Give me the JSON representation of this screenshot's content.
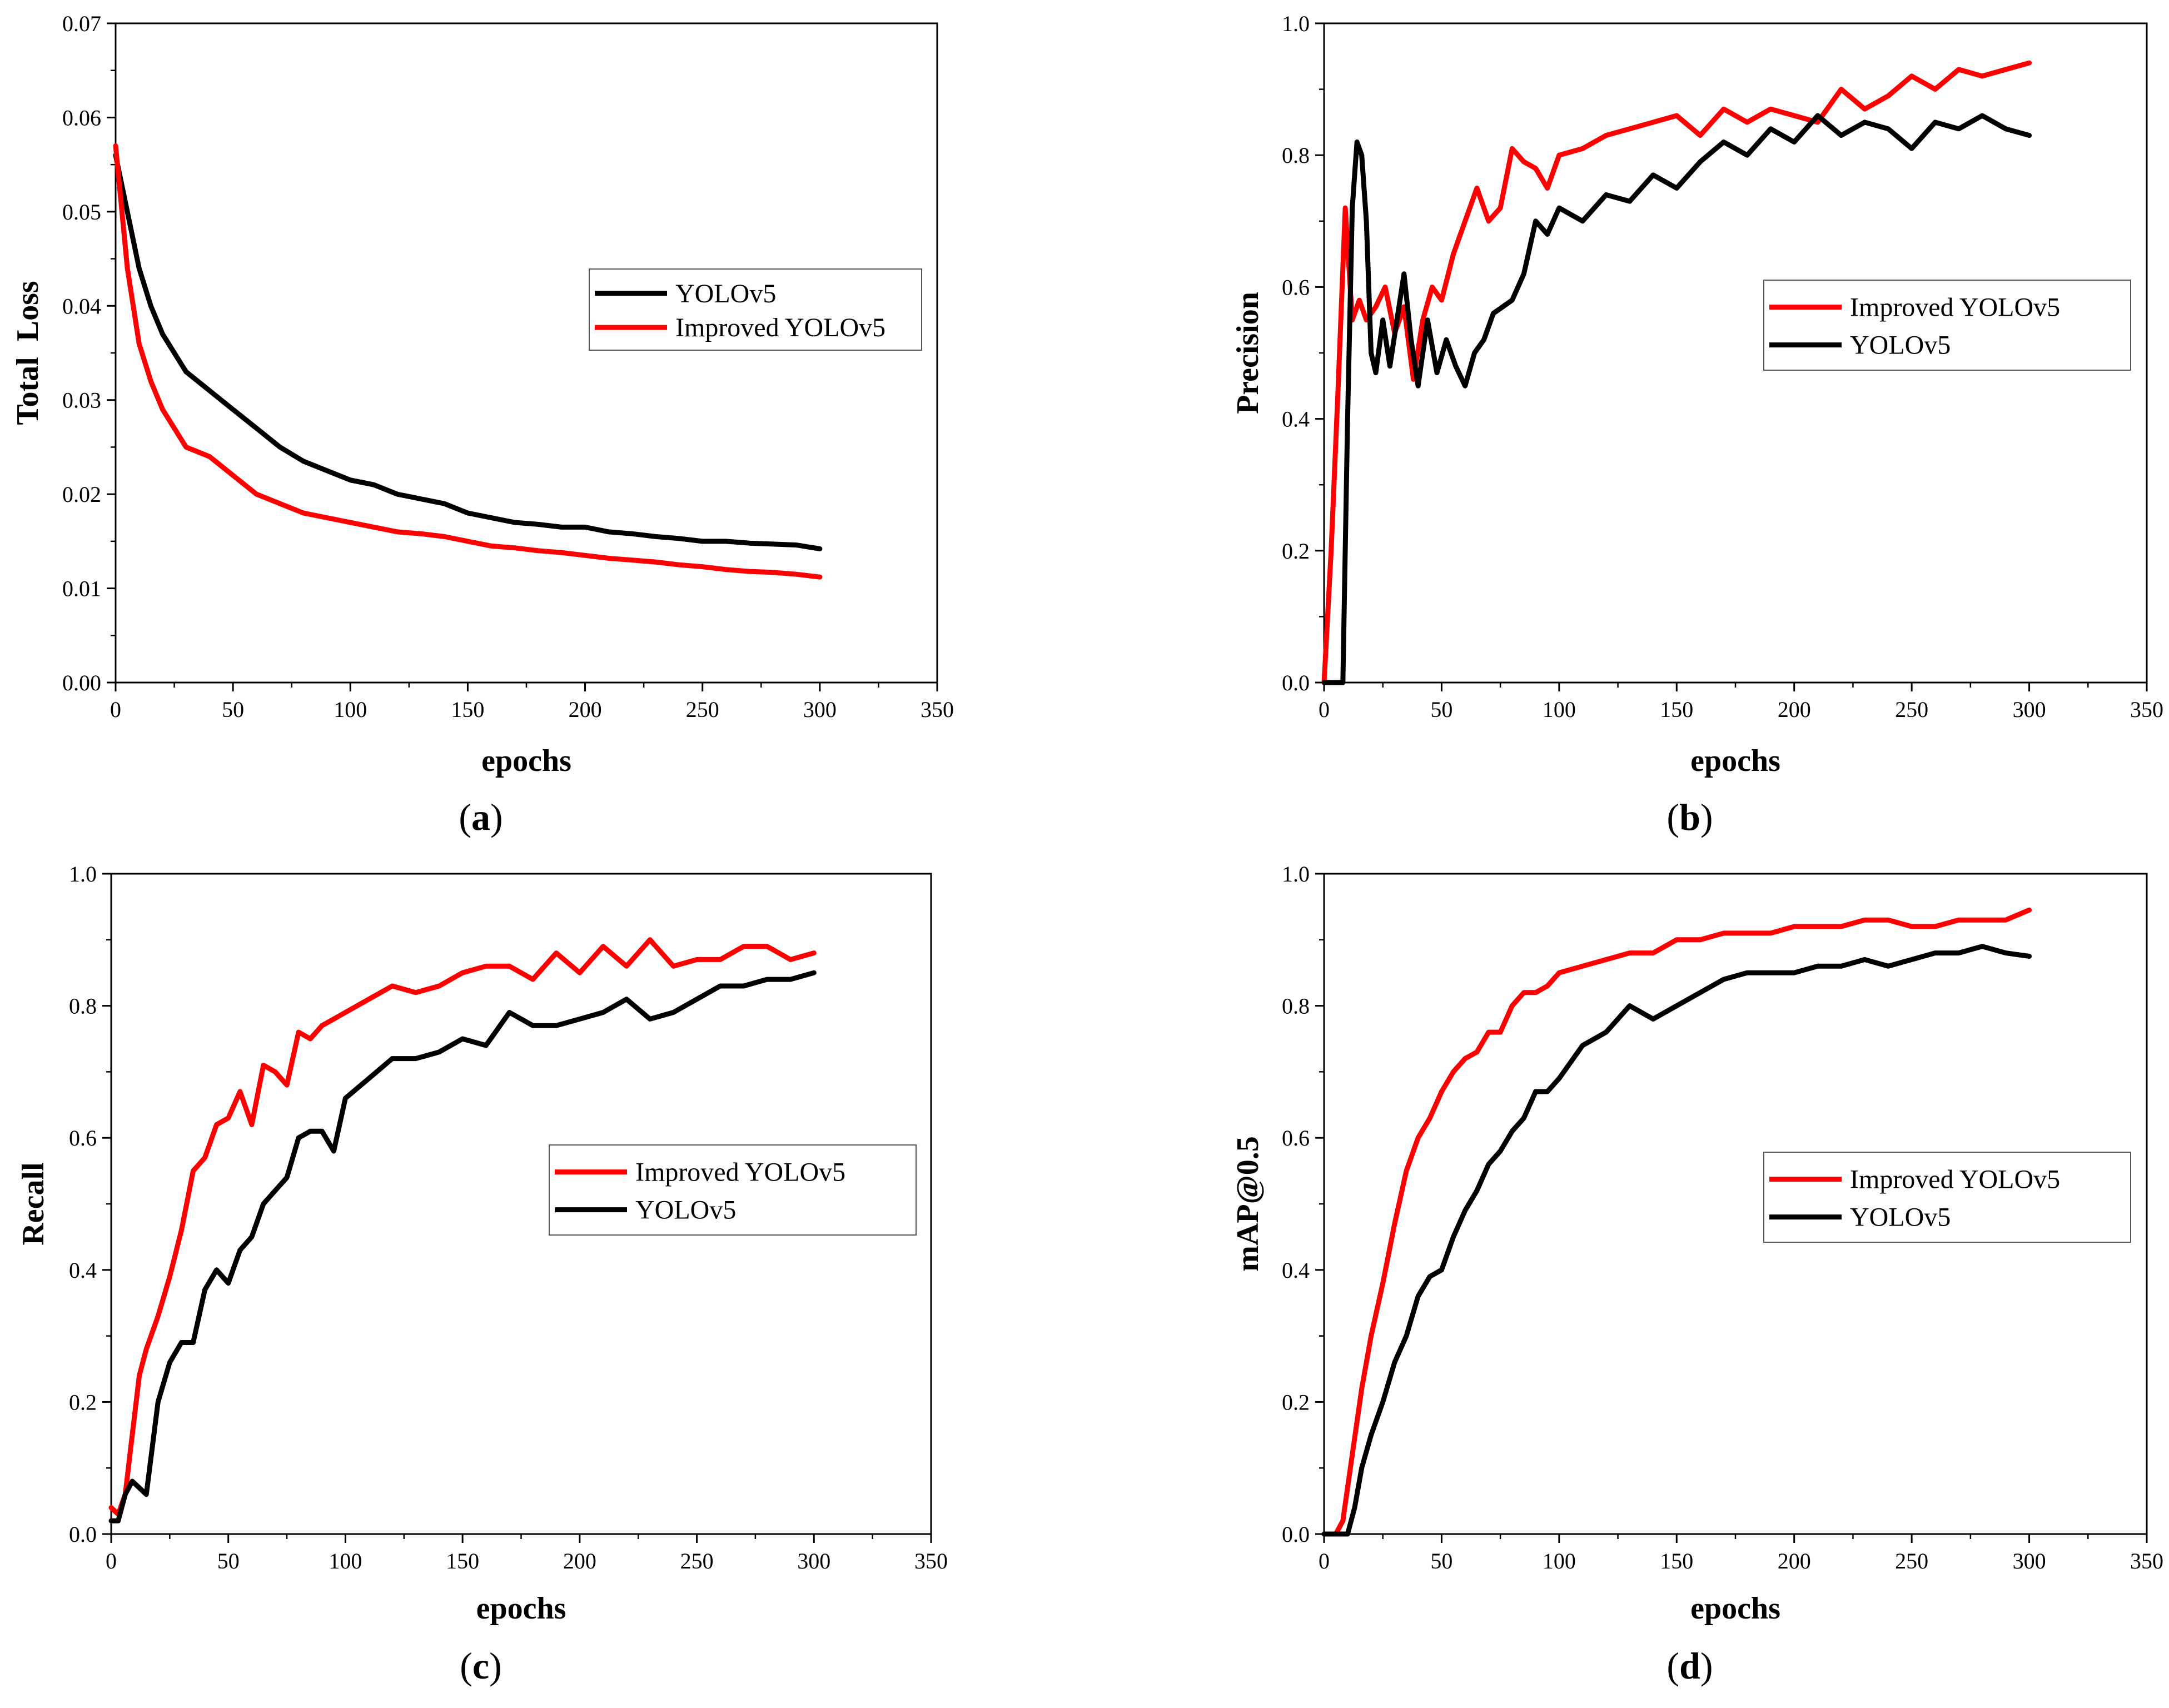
{
  "colors": {
    "yolov5": "#000000",
    "improved": "#ff0000",
    "axis": "#000000",
    "background": "#ffffff"
  },
  "chart_data": [
    {
      "type": "line",
      "panel_letter": "a",
      "xlabel": "epochs",
      "ylabel": "Total  Loss",
      "xlim": [
        0,
        350
      ],
      "ylim": [
        0,
        0.07
      ],
      "xticks": [
        0,
        50,
        100,
        150,
        200,
        250,
        300,
        350
      ],
      "yticks": [
        0.0,
        0.01,
        0.02,
        0.03,
        0.04,
        0.05,
        0.06,
        0.07
      ],
      "ytick_labels": [
        "0.00",
        "0.01",
        "0.02",
        "0.03",
        "0.04",
        "0.05",
        "0.06",
        "0.07"
      ],
      "xtick_labels": [
        "0",
        "50",
        "100",
        "150",
        "200",
        "250",
        "300",
        "350"
      ],
      "legend": {
        "position": "right-middle",
        "order": [
          "YOLOv5",
          "Improved YOLOv5"
        ]
      },
      "series": [
        {
          "name": "YOLOv5",
          "color": "#000000",
          "x": [
            0,
            5,
            10,
            15,
            20,
            25,
            30,
            40,
            50,
            60,
            70,
            80,
            90,
            100,
            110,
            120,
            130,
            140,
            150,
            160,
            170,
            180,
            190,
            200,
            210,
            220,
            230,
            240,
            250,
            260,
            270,
            280,
            290,
            300
          ],
          "y": [
            0.056,
            0.05,
            0.044,
            0.04,
            0.037,
            0.035,
            0.033,
            0.031,
            0.029,
            0.027,
            0.025,
            0.0235,
            0.0225,
            0.0215,
            0.021,
            0.02,
            0.0195,
            0.019,
            0.018,
            0.0175,
            0.017,
            0.0168,
            0.0165,
            0.0165,
            0.016,
            0.0158,
            0.0155,
            0.0153,
            0.015,
            0.015,
            0.0148,
            0.0147,
            0.0146,
            0.0142
          ]
        },
        {
          "name": "Improved YOLOv5",
          "color": "#ff0000",
          "x": [
            0,
            5,
            10,
            15,
            20,
            25,
            30,
            40,
            50,
            60,
            70,
            80,
            90,
            100,
            110,
            120,
            130,
            140,
            150,
            160,
            170,
            180,
            190,
            200,
            210,
            220,
            230,
            240,
            250,
            260,
            270,
            280,
            290,
            300
          ],
          "y": [
            0.057,
            0.044,
            0.036,
            0.032,
            0.029,
            0.027,
            0.025,
            0.024,
            0.022,
            0.02,
            0.019,
            0.018,
            0.0175,
            0.017,
            0.0165,
            0.016,
            0.0158,
            0.0155,
            0.015,
            0.0145,
            0.0143,
            0.014,
            0.0138,
            0.0135,
            0.0132,
            0.013,
            0.0128,
            0.0125,
            0.0123,
            0.012,
            0.0118,
            0.0117,
            0.0115,
            0.0112
          ]
        }
      ]
    },
    {
      "type": "line",
      "panel_letter": "b",
      "xlabel": "epochs",
      "ylabel": "Precision",
      "xlim": [
        0,
        350
      ],
      "ylim": [
        0,
        1.0
      ],
      "xticks": [
        0,
        50,
        100,
        150,
        200,
        250,
        300,
        350
      ],
      "yticks": [
        0.0,
        0.2,
        0.4,
        0.6,
        0.8,
        1.0
      ],
      "ytick_labels": [
        "0.0",
        "0.2",
        "0.4",
        "0.6",
        "0.8",
        "1.0"
      ],
      "xtick_labels": [
        "0",
        "50",
        "100",
        "150",
        "200",
        "250",
        "300",
        "350"
      ],
      "legend": {
        "position": "right-middle",
        "order": [
          "Improved YOLOv5",
          "YOLOv5"
        ]
      },
      "series": [
        {
          "name": "Improved YOLOv5",
          "color": "#ff0000",
          "x": [
            0,
            3,
            6,
            9,
            12,
            15,
            18,
            22,
            26,
            30,
            34,
            38,
            42,
            46,
            50,
            55,
            60,
            65,
            70,
            75,
            80,
            85,
            90,
            95,
            100,
            110,
            120,
            130,
            140,
            150,
            160,
            170,
            180,
            190,
            200,
            210,
            220,
            230,
            240,
            250,
            260,
            270,
            280,
            290,
            300
          ],
          "y": [
            0.0,
            0.2,
            0.45,
            0.72,
            0.55,
            0.58,
            0.55,
            0.57,
            0.6,
            0.53,
            0.57,
            0.46,
            0.55,
            0.6,
            0.58,
            0.65,
            0.7,
            0.75,
            0.7,
            0.72,
            0.81,
            0.79,
            0.78,
            0.75,
            0.8,
            0.81,
            0.83,
            0.84,
            0.85,
            0.86,
            0.83,
            0.87,
            0.85,
            0.87,
            0.86,
            0.85,
            0.9,
            0.87,
            0.89,
            0.92,
            0.9,
            0.93,
            0.92,
            0.93,
            0.94
          ]
        },
        {
          "name": "YOLOv5",
          "color": "#000000",
          "x": [
            0,
            6,
            8,
            10,
            12,
            14,
            16,
            18,
            20,
            22,
            25,
            28,
            31,
            34,
            37,
            40,
            44,
            48,
            52,
            56,
            60,
            64,
            68,
            72,
            76,
            80,
            85,
            90,
            95,
            100,
            110,
            120,
            130,
            140,
            150,
            160,
            170,
            180,
            190,
            200,
            210,
            220,
            230,
            240,
            250,
            260,
            270,
            280,
            290,
            300
          ],
          "y": [
            0.0,
            0.0,
            0.0,
            0.4,
            0.72,
            0.82,
            0.8,
            0.7,
            0.5,
            0.47,
            0.55,
            0.48,
            0.55,
            0.62,
            0.52,
            0.45,
            0.55,
            0.47,
            0.52,
            0.48,
            0.45,
            0.5,
            0.52,
            0.56,
            0.57,
            0.58,
            0.62,
            0.7,
            0.68,
            0.72,
            0.7,
            0.74,
            0.73,
            0.77,
            0.75,
            0.79,
            0.82,
            0.8,
            0.84,
            0.82,
            0.86,
            0.83,
            0.85,
            0.84,
            0.81,
            0.85,
            0.84,
            0.86,
            0.84,
            0.83
          ]
        }
      ]
    },
    {
      "type": "line",
      "panel_letter": "c",
      "xlabel": "epochs",
      "ylabel": "Recall",
      "xlim": [
        0,
        350
      ],
      "ylim": [
        0,
        1.0
      ],
      "xticks": [
        0,
        50,
        100,
        150,
        200,
        250,
        300,
        350
      ],
      "yticks": [
        0.0,
        0.2,
        0.4,
        0.6,
        0.8,
        1.0
      ],
      "ytick_labels": [
        "0.0",
        "0.2",
        "0.4",
        "0.6",
        "0.8",
        "1.0"
      ],
      "xtick_labels": [
        "0",
        "50",
        "100",
        "150",
        "200",
        "250",
        "300",
        "350"
      ],
      "legend": {
        "position": "right-middle",
        "order": [
          "Improved YOLOv5",
          "YOLOv5"
        ]
      },
      "series": [
        {
          "name": "Improved YOLOv5",
          "color": "#ff0000",
          "x": [
            0,
            3,
            6,
            9,
            12,
            15,
            20,
            25,
            30,
            35,
            40,
            45,
            50,
            55,
            60,
            65,
            70,
            75,
            80,
            85,
            90,
            95,
            100,
            110,
            120,
            130,
            140,
            150,
            160,
            170,
            180,
            190,
            200,
            210,
            220,
            230,
            240,
            250,
            260,
            270,
            280,
            290,
            300
          ],
          "y": [
            0.04,
            0.03,
            0.06,
            0.15,
            0.24,
            0.28,
            0.33,
            0.39,
            0.46,
            0.55,
            0.57,
            0.62,
            0.63,
            0.67,
            0.62,
            0.71,
            0.7,
            0.68,
            0.76,
            0.75,
            0.77,
            0.78,
            0.79,
            0.81,
            0.83,
            0.82,
            0.83,
            0.85,
            0.86,
            0.86,
            0.84,
            0.88,
            0.85,
            0.89,
            0.86,
            0.9,
            0.86,
            0.87,
            0.87,
            0.89,
            0.89,
            0.87,
            0.88
          ]
        },
        {
          "name": "YOLOv5",
          "color": "#000000",
          "x": [
            0,
            3,
            6,
            9,
            12,
            15,
            20,
            25,
            30,
            35,
            40,
            45,
            50,
            55,
            60,
            65,
            70,
            75,
            80,
            85,
            90,
            95,
            100,
            110,
            120,
            130,
            140,
            150,
            160,
            170,
            180,
            190,
            200,
            210,
            220,
            230,
            240,
            250,
            260,
            270,
            280,
            290,
            300
          ],
          "y": [
            0.02,
            0.02,
            0.06,
            0.08,
            0.07,
            0.06,
            0.2,
            0.26,
            0.29,
            0.29,
            0.37,
            0.4,
            0.38,
            0.43,
            0.45,
            0.5,
            0.52,
            0.54,
            0.6,
            0.61,
            0.61,
            0.58,
            0.66,
            0.69,
            0.72,
            0.72,
            0.73,
            0.75,
            0.74,
            0.79,
            0.77,
            0.77,
            0.78,
            0.79,
            0.81,
            0.78,
            0.79,
            0.81,
            0.83,
            0.83,
            0.84,
            0.84,
            0.85
          ]
        }
      ]
    },
    {
      "type": "line",
      "panel_letter": "d",
      "xlabel": "epochs",
      "ylabel": "mAP@0.5",
      "xlim": [
        0,
        350
      ],
      "ylim": [
        0,
        1.0
      ],
      "xticks": [
        0,
        50,
        100,
        150,
        200,
        250,
        300,
        350
      ],
      "yticks": [
        0.0,
        0.2,
        0.4,
        0.6,
        0.8,
        1.0
      ],
      "ytick_labels": [
        "0.0",
        "0.2",
        "0.4",
        "0.6",
        "0.8",
        "1.0"
      ],
      "xtick_labels": [
        "0",
        "50",
        "100",
        "150",
        "200",
        "250",
        "300",
        "350"
      ],
      "legend": {
        "position": "right-middle",
        "order": [
          "Improved YOLOv5",
          "YOLOv5"
        ]
      },
      "series": [
        {
          "name": "Improved YOLOv5",
          "color": "#ff0000",
          "x": [
            0,
            5,
            8,
            12,
            16,
            20,
            25,
            30,
            35,
            40,
            45,
            50,
            55,
            60,
            65,
            70,
            75,
            80,
            85,
            90,
            95,
            100,
            110,
            120,
            130,
            140,
            150,
            160,
            170,
            180,
            190,
            200,
            210,
            220,
            230,
            240,
            250,
            260,
            270,
            280,
            290,
            300
          ],
          "y": [
            0.0,
            0.0,
            0.02,
            0.12,
            0.22,
            0.3,
            0.38,
            0.47,
            0.55,
            0.6,
            0.63,
            0.67,
            0.7,
            0.72,
            0.73,
            0.76,
            0.76,
            0.8,
            0.82,
            0.82,
            0.83,
            0.85,
            0.86,
            0.87,
            0.88,
            0.88,
            0.9,
            0.9,
            0.91,
            0.91,
            0.91,
            0.92,
            0.92,
            0.92,
            0.93,
            0.93,
            0.92,
            0.92,
            0.93,
            0.93,
            0.93,
            0.945
          ]
        },
        {
          "name": "YOLOv5",
          "color": "#000000",
          "x": [
            0,
            10,
            13,
            16,
            20,
            25,
            30,
            35,
            40,
            45,
            50,
            55,
            60,
            65,
            70,
            75,
            80,
            85,
            90,
            95,
            100,
            110,
            120,
            130,
            140,
            150,
            160,
            170,
            180,
            190,
            200,
            210,
            220,
            230,
            240,
            250,
            260,
            270,
            280,
            290,
            300
          ],
          "y": [
            0.0,
            0.0,
            0.04,
            0.1,
            0.15,
            0.2,
            0.26,
            0.3,
            0.36,
            0.39,
            0.4,
            0.45,
            0.49,
            0.52,
            0.56,
            0.58,
            0.61,
            0.63,
            0.67,
            0.67,
            0.69,
            0.74,
            0.76,
            0.8,
            0.78,
            0.8,
            0.82,
            0.84,
            0.85,
            0.85,
            0.85,
            0.86,
            0.86,
            0.87,
            0.86,
            0.87,
            0.88,
            0.88,
            0.89,
            0.88,
            0.875
          ]
        }
      ]
    }
  ]
}
